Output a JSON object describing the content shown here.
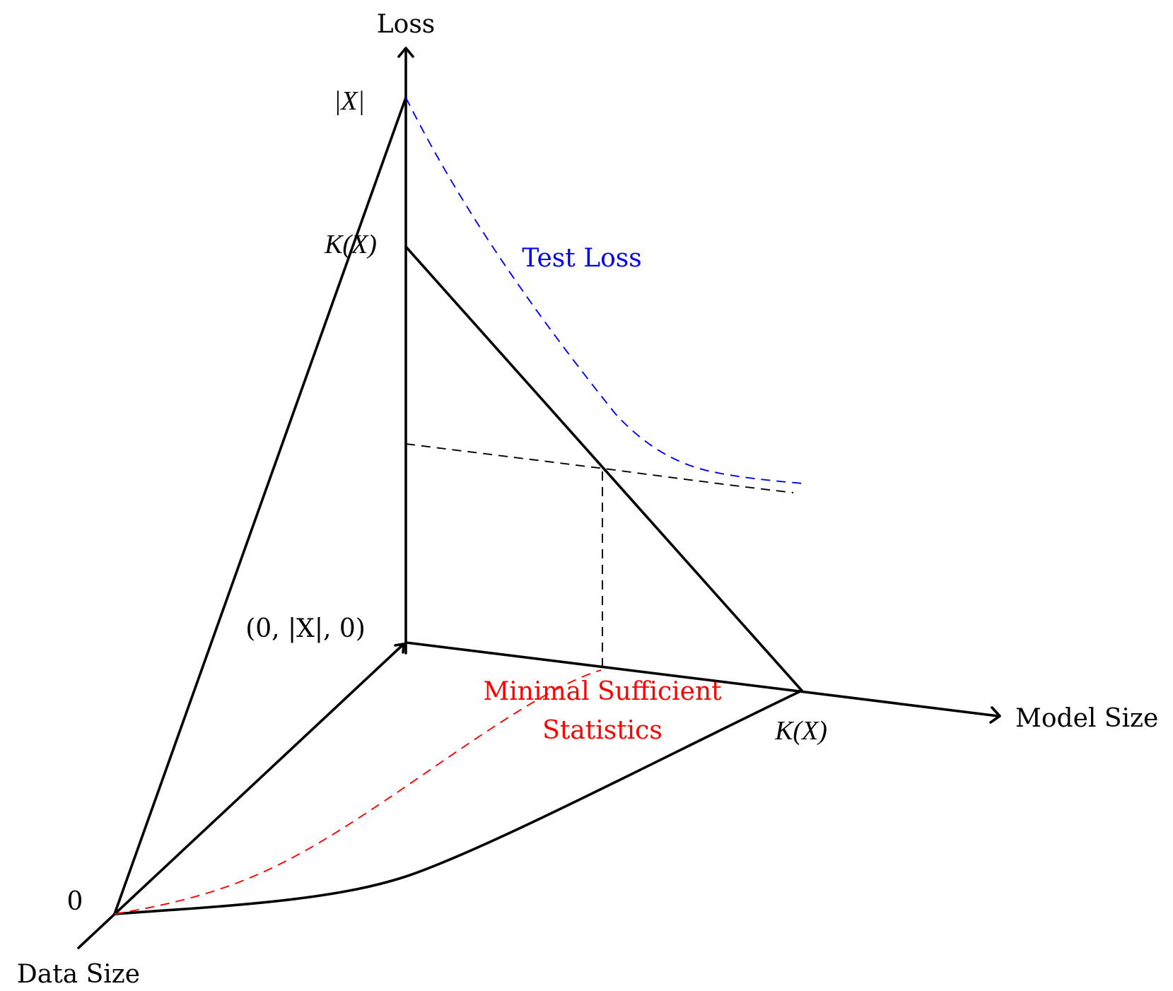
{
  "axes": {
    "loss_label": "Loss",
    "model_size_label": "Model Size",
    "data_size_label": "Data Size"
  },
  "ticks": {
    "abs_x": "|X|",
    "k_x_loss": "K(X)",
    "k_x_model": "K(X)",
    "corner_point": "(0, |X|, 0)",
    "origin": "0"
  },
  "curves": {
    "test_loss_label": "Test Loss",
    "test_loss_color": "#0000ff",
    "minimal_stats_label_line1": "Minimal Sufficient",
    "minimal_stats_label_line2": "Statistics",
    "minimal_stats_color": "#ff0000"
  }
}
